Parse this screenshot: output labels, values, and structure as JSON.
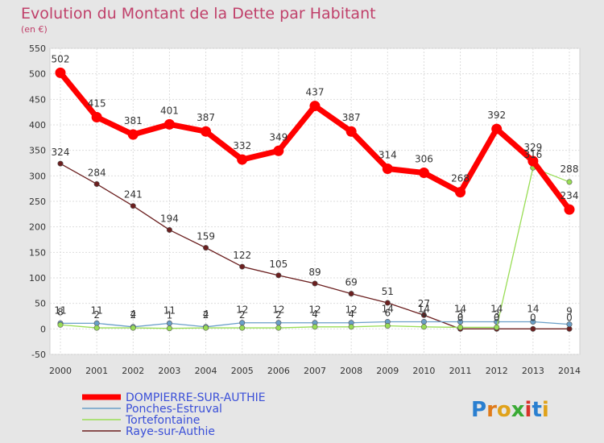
{
  "title": "Evolution du Montant de la Dette par Habitant",
  "subtitle": "(en €)",
  "logo_text": "Proxiti",
  "chart_data": {
    "type": "line",
    "x": [
      "2000",
      "2001",
      "2002",
      "2003",
      "2004",
      "2005",
      "2006",
      "2007",
      "2008",
      "2009",
      "2010",
      "2011",
      "2012",
      "2013",
      "2014"
    ],
    "ylim": [
      -50,
      550
    ],
    "yticks": [
      -50,
      0,
      50,
      100,
      150,
      200,
      250,
      300,
      350,
      400,
      450,
      500,
      550
    ],
    "grid": true,
    "legend_position": "bottom-left",
    "series": [
      {
        "name": "DOMPIERRE-SUR-AUTHIE",
        "color": "#ff0000",
        "values": [
          502,
          415,
          381,
          401,
          387,
          332,
          349,
          437,
          387,
          314,
          306,
          268,
          392,
          329,
          234
        ]
      },
      {
        "name": "Ponches-Estruval",
        "color": "#6a9fc8",
        "values": [
          11,
          11,
          4,
          11,
          4,
          12,
          12,
          12,
          12,
          14,
          14,
          14,
          14,
          14,
          9
        ]
      },
      {
        "name": "Tortefontaine",
        "color": "#99dd55",
        "values": [
          8,
          2,
          2,
          1,
          2,
          2,
          2,
          4,
          4,
          6,
          4,
          3,
          3,
          316,
          288
        ]
      },
      {
        "name": "Raye-sur-Authie",
        "color": "#6b1f1f",
        "values": [
          324,
          284,
          241,
          194,
          159,
          122,
          105,
          89,
          69,
          51,
          27,
          0,
          0,
          0,
          0
        ]
      }
    ],
    "labeled": {
      "DOMPIERRE-SUR-AUTHIE": [
        502,
        415,
        381,
        401,
        387,
        332,
        349,
        437,
        387,
        314,
        306,
        268,
        392,
        329,
        234
      ],
      "Ponches-Estruval": [
        11,
        11,
        4,
        11,
        4,
        12,
        12,
        12,
        12,
        14,
        14,
        14,
        14,
        14,
        9
      ],
      "Tortefontaine": [
        "8",
        "2",
        "2",
        "1",
        "2",
        "2",
        "2",
        "4",
        "4",
        "6",
        "4",
        "3",
        "3",
        "316",
        "288"
      ],
      "Raye-sur-Authie": [
        324,
        284,
        241,
        194,
        159,
        122,
        105,
        89,
        69,
        51,
        27,
        0,
        0,
        0,
        0
      ]
    }
  }
}
